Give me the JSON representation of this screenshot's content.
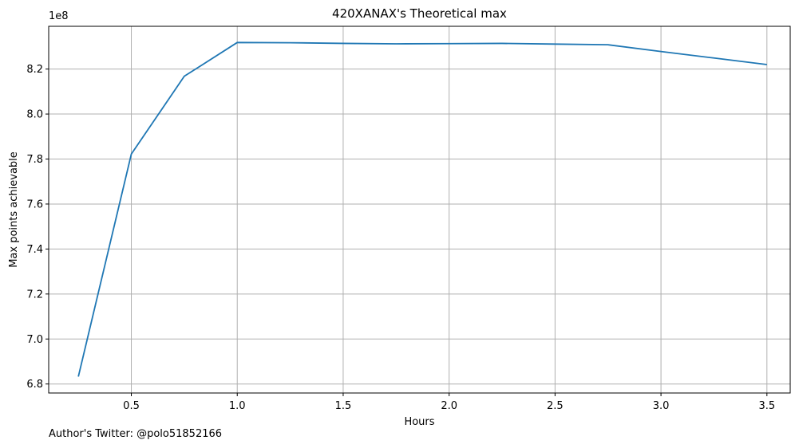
{
  "footnote": "Author's Twitter: @polo51852166",
  "chart_data": {
    "type": "line",
    "title": "420XANAX's Theoretical max",
    "xlabel": "Hours",
    "ylabel": "Max points achievable",
    "y_offset_label": "1e8",
    "y_scale": 100000000,
    "xlim": [
      0.11,
      3.61
    ],
    "ylim": [
      6.76,
      8.39
    ],
    "xticks": [
      0.5,
      1.0,
      1.5,
      2.0,
      2.5,
      3.0,
      3.5
    ],
    "xtick_labels": [
      "0.5",
      "1.0",
      "1.5",
      "2.0",
      "2.5",
      "3.0",
      "3.5"
    ],
    "yticks": [
      6.8,
      7.0,
      7.2,
      7.4,
      7.6,
      7.8,
      8.0,
      8.2
    ],
    "ytick_labels": [
      "6.8",
      "7.0",
      "7.2",
      "7.4",
      "7.6",
      "7.8",
      "8.0",
      "8.2"
    ],
    "grid": true,
    "line_color": "#1f77b4",
    "grid_color": "#b0b0b0",
    "series": [
      {
        "x": [
          0.25,
          0.5,
          0.75,
          1.0,
          1.25,
          1.5,
          1.75,
          2.0,
          2.25,
          2.5,
          2.75,
          3.0,
          3.25,
          3.5
        ],
        "values": [
          6.833,
          7.822,
          8.168,
          8.318,
          8.317,
          8.314,
          8.312,
          8.313,
          8.314,
          8.311,
          8.308,
          8.278,
          8.249,
          8.22
        ]
      }
    ]
  }
}
